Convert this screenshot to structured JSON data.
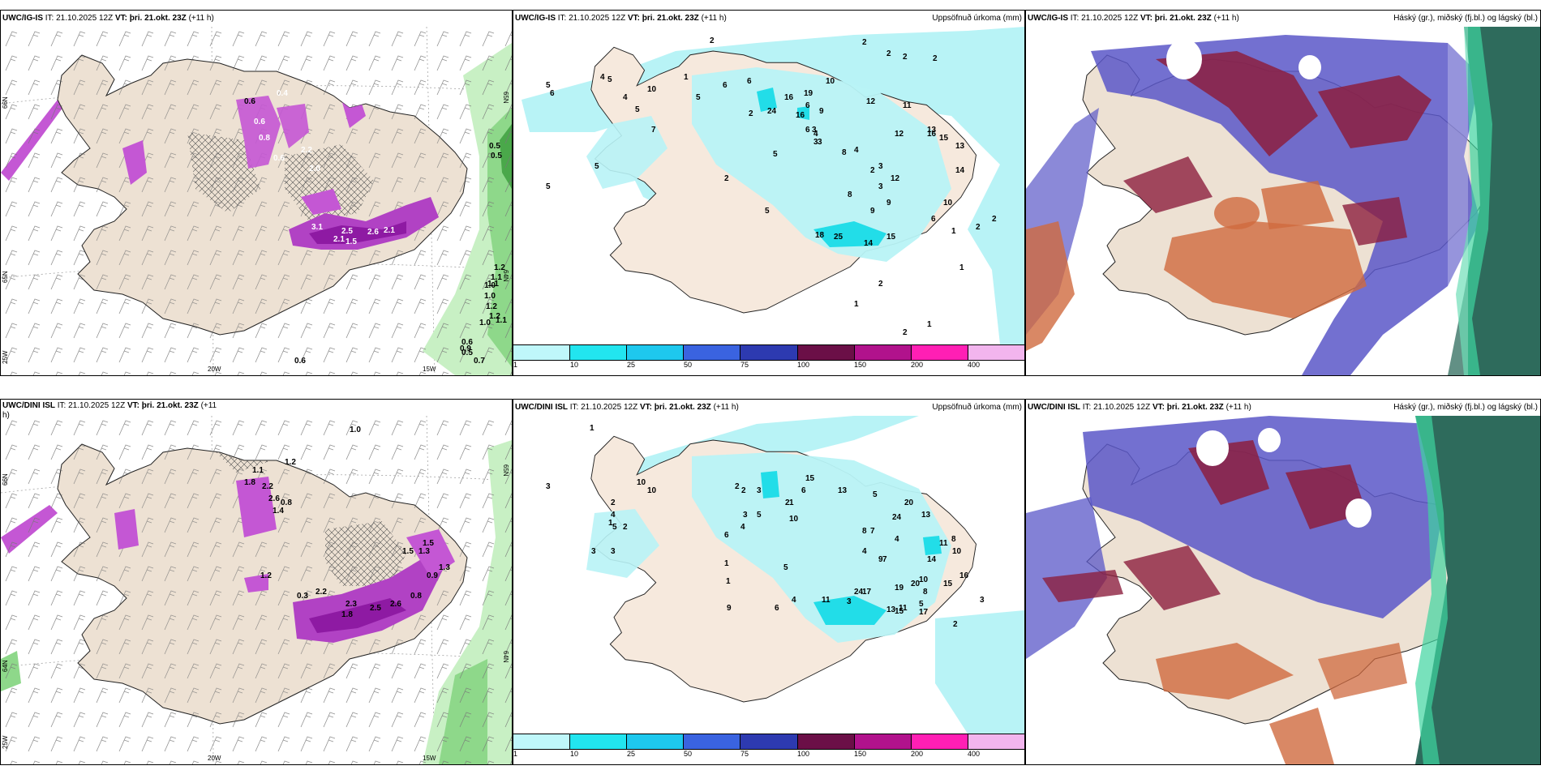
{
  "colors": {
    "land": "#ede1d3",
    "sea": "#ffffff",
    "precip_light": "#b8f3f6",
    "precip_mid": "#22dde8",
    "magenta": "#c457d4",
    "magenta_dark": "#a12ab5",
    "green": "#9fe49b",
    "green_dark": "#5cb85c",
    "cloud_high_blue": "#5a57c8",
    "cloud_mid_red": "#8c1f3f",
    "cloud_low_orange": "#cf6a3f",
    "cloud_teal": "#2e6b5c",
    "legend": [
      "#bff7fa",
      "#22e5ef",
      "#1ec8ee",
      "#3a63e0",
      "#2d3ab0",
      "#6b0f47",
      "#b1128c",
      "#ff1fb4",
      "#f2b5ee"
    ]
  },
  "panels": {
    "top_left": {
      "model": "UWC/IG-IS",
      "it_prefix": "IT: 21.10.2025 12Z",
      "vt_bold": "VT: þri. 21.okt. 23Z",
      "lead": "(+11 h)",
      "lat_labels": [
        "66N",
        "65N",
        "25W"
      ],
      "lat_labels_right": [
        "65N",
        "64N"
      ],
      "lon_labels": [
        "20W",
        "15W"
      ],
      "values": [
        "0.6",
        "1.1",
        "1.0",
        "1.2",
        "1.2",
        "0.6",
        "0.4",
        "0.6",
        "0.8",
        "0.6",
        "2.2",
        "2.0",
        "3.1",
        "2.5",
        "2.1",
        "2.6",
        "2.1",
        "1.5",
        "0.5",
        "0.5",
        "1.1",
        "1.0",
        "1.2",
        "1.0",
        "1.1",
        "0.9",
        "0.5",
        "0.7",
        "0.6"
      ]
    },
    "top_mid": {
      "model": "UWC/IG-IS",
      "it_prefix": "IT: 21.10.2025 12Z",
      "vt_bold": "VT: þri. 21.okt. 23Z",
      "lead": "(+11 h)",
      "title_right": "Uppsöfnuð úrkoma (mm)",
      "values": [
        "2",
        "2",
        "2",
        "2",
        "2",
        "1",
        "4",
        "5",
        "10",
        "5",
        "6",
        "4",
        "5",
        "7",
        "6",
        "6",
        "5",
        "2",
        "3",
        "4",
        "3",
        "4",
        "3",
        "2",
        "5",
        "2",
        "5",
        "24",
        "16",
        "19",
        "16",
        "3",
        "5",
        "6",
        "9",
        "8",
        "6",
        "10",
        "12",
        "11",
        "12",
        "13",
        "15",
        "13",
        "16",
        "14",
        "10",
        "6",
        "12",
        "8",
        "9",
        "3",
        "9",
        "5",
        "18",
        "25",
        "14",
        "15",
        "2",
        "2",
        "1",
        "1",
        "1",
        "2",
        "1",
        "2"
      ]
    },
    "top_right": {
      "model": "UWC/IG-IS",
      "it_prefix": "IT: 21.10.2025 12Z",
      "vt_bold": "VT: þri. 21.okt. 23Z",
      "lead": "(+11 h)",
      "title_right": "Háský (gr.), miðský (fj.bl.) og lágský (bl.)"
    },
    "bottom_left": {
      "model": "UWC/DINI ISL",
      "it_prefix": "IT: 21.10.2025 12Z",
      "vt_bold": "VT: þri. 21.okt. 23Z",
      "lead": "(+11",
      "lead_cont": "h)",
      "lat_labels": [
        "66N",
        "64N",
        "25W"
      ],
      "lat_labels_right": [
        "65N",
        "64N"
      ],
      "lon_labels": [
        "20W",
        "15W"
      ],
      "values": [
        "1.0",
        "1.2",
        "1.1",
        "1.8",
        "2.6",
        "1.4",
        "2.2",
        "0.8",
        "1.5",
        "1.3",
        "0.3",
        "2.2",
        "2.3",
        "1.8",
        "2.5",
        "2.6",
        "0.8",
        "1.5",
        "1.2",
        "0.9",
        "1.3"
      ]
    },
    "bottom_mid": {
      "model": "UWC/DINI ISL",
      "it_prefix": "IT: 21.10.2025 12Z",
      "vt_bold": "VT: þri. 21.okt. 23Z",
      "lead": "(+11 h)",
      "title_right": "Uppsöfnuð úrkoma (mm)",
      "values": [
        "1",
        "3",
        "2",
        "2",
        "3",
        "10",
        "10",
        "4",
        "5",
        "3",
        "1",
        "3",
        "2",
        "2",
        "3",
        "1",
        "2",
        "6",
        "5",
        "4",
        "6",
        "10",
        "15",
        "13",
        "5",
        "20",
        "13",
        "24",
        "8",
        "11",
        "8",
        "10",
        "14",
        "9",
        "4",
        "19",
        "17",
        "20",
        "10",
        "5",
        "11",
        "7",
        "4",
        "15",
        "7",
        "8",
        "11",
        "3",
        "13",
        "15",
        "24",
        "17",
        "16",
        "3",
        "2",
        "1",
        "6",
        "1",
        "9",
        "5",
        "4"
      ]
    },
    "bottom_right": {
      "model": "UWC/DINI ISL",
      "it_prefix": "IT: 21.10.2025 12Z",
      "vt_bold": "VT: þri. 21.okt. 23Z",
      "lead": "(+11 h)",
      "title_right": "Háský (gr.), miðský (fj.bl.) og lágský (bl.)"
    }
  },
  "legend_labels": [
    "1",
    "10",
    "25",
    "50",
    "75",
    "100",
    "150",
    "200",
    "400"
  ]
}
